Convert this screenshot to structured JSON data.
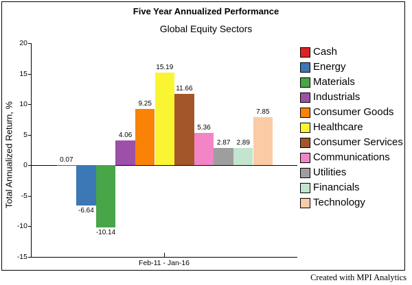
{
  "footer": {
    "credit": "Created with MPI Analytics"
  },
  "chart_data": {
    "type": "bar",
    "title": "Five Year Annualized Performance",
    "subtitle": "Global Equity Sectors",
    "ylabel": "Total Annualized Return, %",
    "xlabel": "Feb-11 - Jan-16",
    "ylim": [
      -15,
      20
    ],
    "yticks": [
      20,
      15,
      10,
      5,
      0,
      -5,
      -10,
      -15
    ],
    "grid": false,
    "legend_position": "right",
    "categories": [
      "Cash",
      "Energy",
      "Materials",
      "Industrials",
      "Consumer Goods",
      "Healthcare",
      "Consumer Services",
      "Communications",
      "Utilities",
      "Financials",
      "Technology"
    ],
    "values": [
      0.07,
      -6.64,
      -10.14,
      4.06,
      9.25,
      15.19,
      11.66,
      5.36,
      2.87,
      2.89,
      7.85
    ],
    "colors": [
      "#DD2222",
      "#3B78B5",
      "#48A548",
      "#9C50A8",
      "#F98207",
      "#FAF532",
      "#A4562B",
      "#F384C6",
      "#9E9E9E",
      "#C3E4CF",
      "#FACBA5"
    ]
  }
}
